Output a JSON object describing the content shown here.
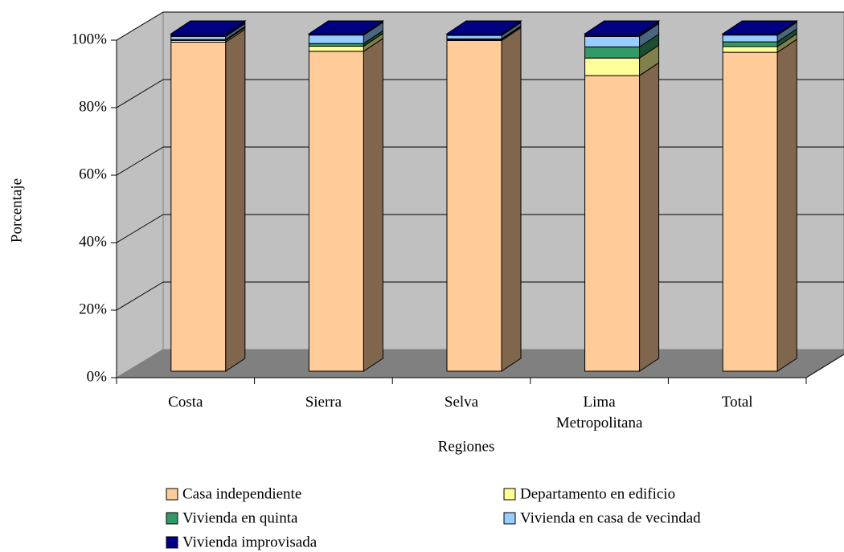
{
  "chart_data": {
    "type": "bar",
    "stacked": true,
    "categories": [
      "Costa",
      "Sierra",
      "Selva",
      "Lima Metropolitana",
      "Total"
    ],
    "series": [
      {
        "name": "Casa independiente",
        "color": "#ffcc99",
        "values": [
          97.5,
          94.8,
          98.0,
          87.6,
          94.5
        ]
      },
      {
        "name": "Departamento en edificio",
        "color": "#ffff99",
        "values": [
          0.5,
          1.5,
          0.2,
          5.2,
          1.7
        ]
      },
      {
        "name": "Vivienda en quinta",
        "color": "#339966",
        "values": [
          0.3,
          0.8,
          0.3,
          3.3,
          1.4
        ]
      },
      {
        "name": "Vivienda en casa de vecindad",
        "color": "#99ccff",
        "values": [
          0.9,
          2.5,
          1.0,
          3.1,
          2.0
        ]
      },
      {
        "name": "Vivienda improvisada",
        "color": "#000080",
        "values": [
          0.8,
          0.4,
          0.5,
          0.8,
          0.4
        ]
      }
    ],
    "xlabel": "Regiones",
    "ylabel": "Porcentaje",
    "ylim": [
      0,
      100
    ],
    "yticks": [
      {
        "value": 0,
        "label": "0%"
      },
      {
        "value": 20,
        "label": "20%"
      },
      {
        "value": 40,
        "label": "40%"
      },
      {
        "value": 60,
        "label": "60%"
      },
      {
        "value": 80,
        "label": "80%"
      },
      {
        "value": 100,
        "label": "100%"
      }
    ],
    "grid": true,
    "legend": "bottom"
  }
}
